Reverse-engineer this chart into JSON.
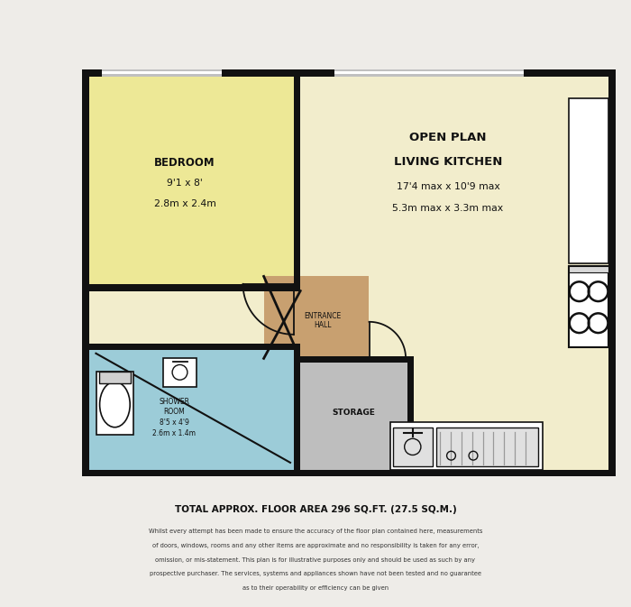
{
  "bg_color": "#eeece8",
  "wall_color": "#111111",
  "bedroom_color": "#ede896",
  "living_color": "#f2edcc",
  "hall_color": "#c8a070",
  "shower_color": "#9cccd8",
  "storage_color": "#bebebe",
  "white_color": "#ffffff",
  "light_gray": "#e0e0e0",
  "title_text": "TOTAL APPROX. FLOOR AREA 296 SQ.FT. (27.5 SQ.M.)",
  "disclaimer_lines": [
    "Whilst every attempt has been made to ensure the accuracy of the floor plan contained here, measurements",
    "of doors, windows, rooms and any other items are approximate and no responsibility is taken for any error,",
    "omission, or mis-statement. This plan is for illustrative purposes only and should be used as such by any",
    "prospective purchaser. The services, systems and appliances shown have not been tested and no guarantee",
    "as to their operability or efficiency can be given"
  ]
}
